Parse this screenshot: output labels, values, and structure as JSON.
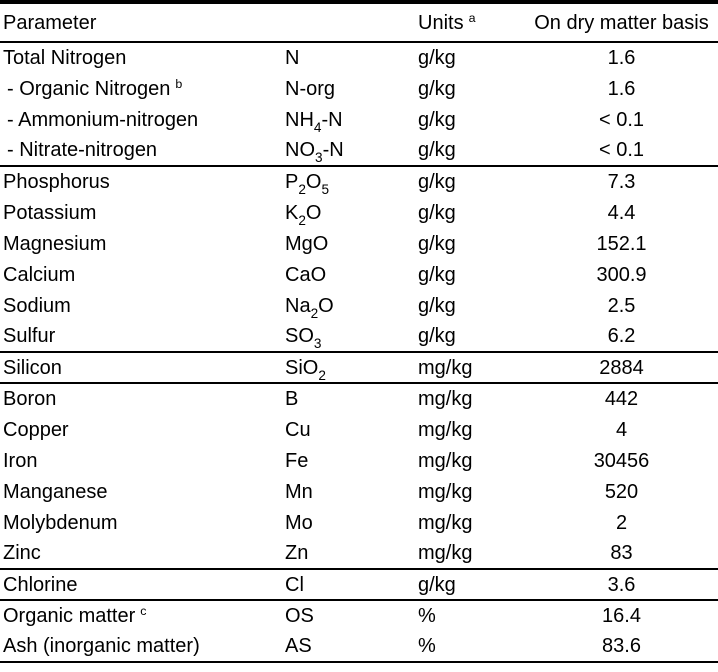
{
  "table": {
    "colors": {
      "text": "#000000",
      "background": "#ffffff",
      "rule": "#000000"
    },
    "headers": {
      "parameter": "Parameter",
      "symbol": "",
      "units": "Units",
      "units_footnote": "a",
      "value": "On dry matter basis"
    },
    "sections": [
      {
        "rows": [
          {
            "param": "Total Nitrogen",
            "symbol": "N",
            "units": "g/kg",
            "value": "1.6"
          },
          {
            "param": "- Organic Nitrogen",
            "footnote": "b",
            "indent": true,
            "symbol": "N-org",
            "units": "g/kg",
            "value": "1.6"
          },
          {
            "param": "- Ammonium-nitrogen",
            "indent": true,
            "symbol": "NH_4_-N",
            "units": "g/kg",
            "value": "< 0.1"
          },
          {
            "param": "- Nitrate-nitrogen",
            "indent": true,
            "symbol": "NO_3_-N",
            "units": "g/kg",
            "value": "< 0.1"
          }
        ]
      },
      {
        "rows": [
          {
            "param": "Phosphorus",
            "symbol": "P_2_O_5_",
            "units": "g/kg",
            "value": "7.3"
          },
          {
            "param": "Potassium",
            "symbol": "K_2_O",
            "units": "g/kg",
            "value": "4.4"
          },
          {
            "param": "Magnesium",
            "symbol": "MgO",
            "units": "g/kg",
            "value": "152.1"
          },
          {
            "param": "Calcium",
            "symbol": "CaO",
            "units": "g/kg",
            "value": "300.9"
          },
          {
            "param": "Sodium",
            "symbol": "Na_2_O",
            "units": "g/kg",
            "value": "2.5"
          },
          {
            "param": "Sulfur",
            "symbol": "SO_3_",
            "units": "g/kg",
            "value": "6.2"
          }
        ]
      },
      {
        "rows": [
          {
            "param": "Silicon",
            "symbol": "SiO_2_",
            "units": "mg/kg",
            "value": "2884"
          }
        ]
      },
      {
        "rows": [
          {
            "param": "Boron",
            "symbol": "B",
            "units": "mg/kg",
            "value": "442"
          },
          {
            "param": "Copper",
            "symbol": "Cu",
            "units": "mg/kg",
            "value": "4"
          },
          {
            "param": "Iron",
            "symbol": "Fe",
            "units": "mg/kg",
            "value": "30456"
          },
          {
            "param": "Manganese",
            "symbol": "Mn",
            "units": "mg/kg",
            "value": "520"
          },
          {
            "param": "Molybdenum",
            "symbol": "Mo",
            "units": "mg/kg",
            "value": "2"
          },
          {
            "param": "Zinc",
            "symbol": "Zn",
            "units": "mg/kg",
            "value": "83"
          }
        ]
      },
      {
        "rows": [
          {
            "param": "Chlorine",
            "symbol": "Cl",
            "units": "g/kg",
            "value": "3.6"
          }
        ]
      },
      {
        "rows": [
          {
            "param": "Organic matter",
            "footnote": "c",
            "symbol": "OS",
            "units": "%",
            "value": "16.4"
          },
          {
            "param": "Ash (inorganic matter)",
            "symbol": "AS",
            "units": "%",
            "value": "83.6"
          }
        ]
      }
    ]
  }
}
